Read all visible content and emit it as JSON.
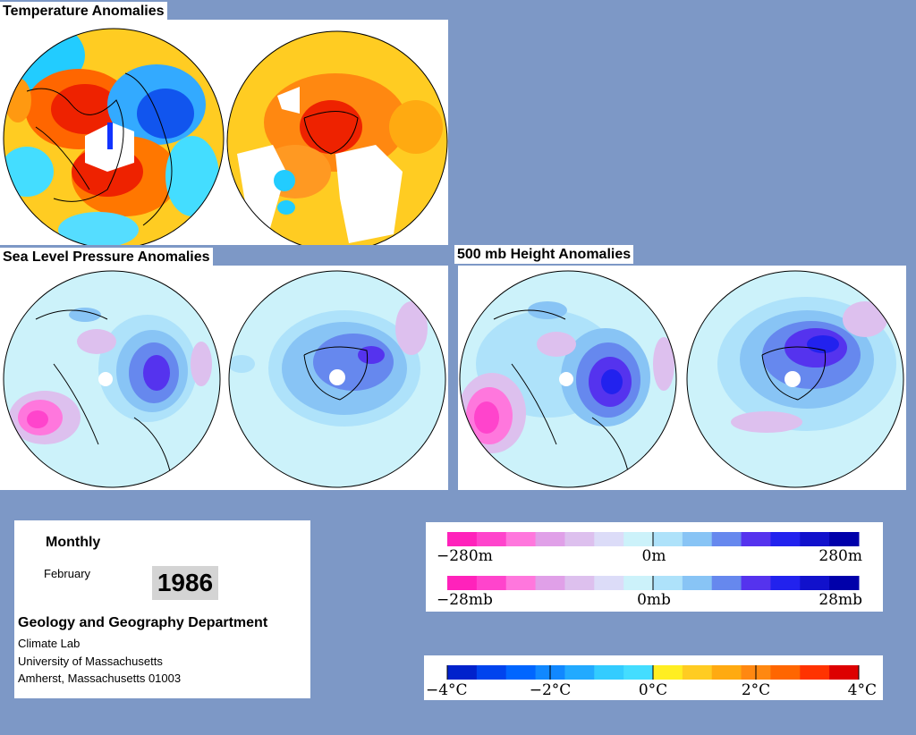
{
  "headings": {
    "temperature": "Temperature Anomalies",
    "slp": "Sea Level Pressure Anomalies",
    "height500": "500 mb Height Anomalies"
  },
  "info": {
    "period": "Monthly",
    "month": "February",
    "year": "1986",
    "department": "Geology and Geography Department",
    "lab": "Climate Lab",
    "university": "University of Massachusetts",
    "address": "Amherst, Massachusetts 01003"
  },
  "legends": {
    "height": {
      "left": "−280m",
      "center": "0m",
      "right": "280m"
    },
    "pressure": {
      "left": "−28mb",
      "center": "0mb",
      "right": "28mb"
    },
    "temperature": {
      "ticks": [
        "−4°C",
        "−2°C",
        "0°C",
        "2°C",
        "4°C"
      ]
    }
  },
  "colors": {
    "background": "#7d98c6",
    "purple_ramp": [
      "#ff22bb",
      "#ff44cc",
      "#ff77dd",
      "#e0a0e8",
      "#ddc0ee",
      "#dcdcf8",
      "#ccf2fa",
      "#aee2fa",
      "#88c4f5",
      "#6688ee",
      "#5533ee",
      "#2222ee",
      "#1111cc",
      "#0000aa"
    ],
    "temperature_ramp": [
      "#0022cc",
      "#0044ee",
      "#0066ff",
      "#1188ff",
      "#22aaff",
      "#33ccff",
      "#44ddff",
      "#ffee22",
      "#ffcc22",
      "#ffaa11",
      "#ff8811",
      "#ff6600",
      "#ff3300",
      "#dd0000"
    ]
  }
}
